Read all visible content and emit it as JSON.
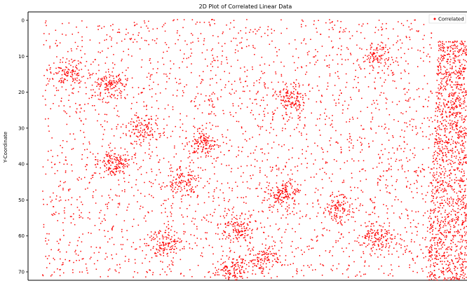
{
  "chart_data": {
    "type": "scatter",
    "title": "2D Plot of Correlated Linear Data",
    "xlabel": "",
    "ylabel": "Y-Coordinate",
    "y_tick_labels": [
      "0",
      "10",
      "20",
      "30",
      "40",
      "50",
      "60",
      "70"
    ],
    "ylim": [
      0,
      70
    ],
    "x_tick_labels": [],
    "grid": false,
    "legend": {
      "position": "top-right",
      "entries": [
        "Correlated"
      ]
    },
    "series": [
      {
        "name": "Correlated",
        "color": "#ff0000",
        "marker": "point",
        "point_count_shown": "dense",
        "clusters_yx": [
          [
            15,
            5
          ],
          [
            18,
            12
          ],
          [
            22,
            45
          ],
          [
            30,
            18
          ],
          [
            34,
            29
          ],
          [
            40,
            13
          ],
          [
            45,
            25
          ],
          [
            48,
            43
          ],
          [
            52,
            53
          ],
          [
            58,
            35
          ],
          [
            62,
            22
          ],
          [
            66,
            40
          ],
          [
            69,
            34
          ],
          [
            10,
            60
          ],
          [
            60,
            60
          ]
        ],
        "right_band": {
          "x_from_fraction": 0.94,
          "note_shape": "dense edge band"
        }
      }
    ]
  }
}
